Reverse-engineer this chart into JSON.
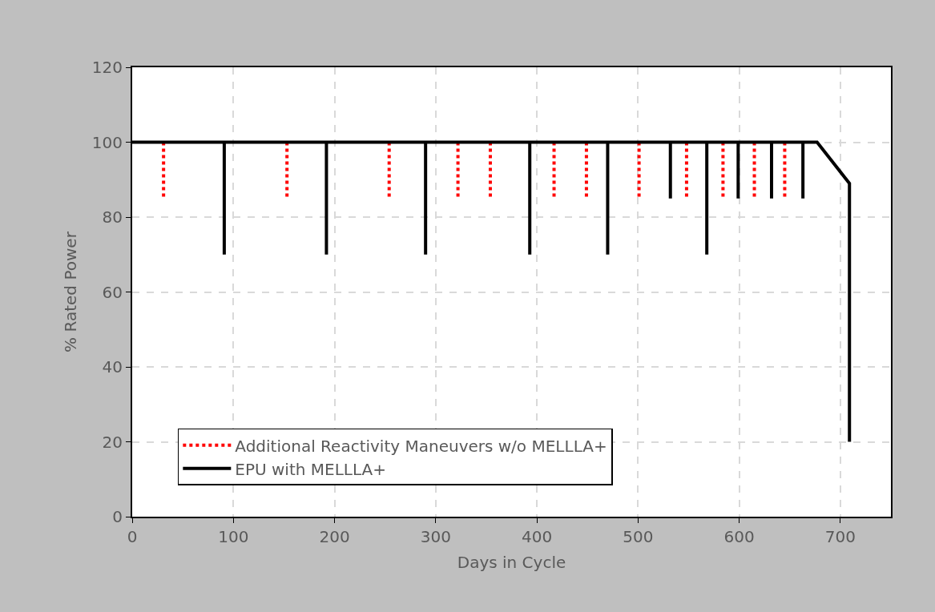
{
  "chart_data": {
    "type": "line",
    "xlabel": "Days in Cycle",
    "ylabel": "% Rated Power",
    "xlim": [
      0,
      750
    ],
    "xticks": [
      0,
      100,
      200,
      300,
      400,
      500,
      600,
      700
    ],
    "ylim": [
      0,
      120
    ],
    "yticks": [
      0,
      20,
      40,
      60,
      80,
      100,
      120
    ],
    "grid": true,
    "legend": "bottom",
    "marker": "none",
    "series": [
      {
        "name": "Additional Reactivity Maneuvers w/o MELLLA+",
        "color": "#ff0000",
        "line_style": "dotted",
        "x": [
          31,
          31,
          null,
          153,
          153,
          null,
          254,
          254,
          null,
          322,
          322,
          null,
          354,
          354,
          null,
          417,
          417,
          null,
          449,
          449,
          null,
          501,
          501,
          null,
          548,
          548,
          null,
          584,
          584,
          null,
          615,
          615,
          null,
          645,
          645
        ],
        "values": [
          100,
          85,
          null,
          100,
          85,
          null,
          100,
          85,
          null,
          100,
          85,
          null,
          100,
          85,
          null,
          100,
          85,
          null,
          100,
          85,
          null,
          100,
          85,
          null,
          100,
          85,
          null,
          100,
          85,
          null,
          100,
          85,
          null,
          100,
          85
        ]
      },
      {
        "name": "EPU with MELLLA+",
        "color": "#000000",
        "line_style": "solid",
        "x": [
          0,
          91,
          91,
          91,
          192,
          192,
          192,
          290,
          290,
          290,
          393,
          393,
          393,
          470,
          470,
          470,
          532,
          532,
          532,
          568,
          568,
          568,
          599,
          599,
          599,
          632,
          632,
          632,
          663,
          663,
          663,
          677,
          709,
          709
        ],
        "values": [
          100,
          100,
          70,
          100,
          100,
          70,
          100,
          100,
          70,
          100,
          100,
          70,
          100,
          100,
          70,
          100,
          100,
          85,
          100,
          100,
          70,
          100,
          100,
          85,
          100,
          100,
          85,
          100,
          100,
          85,
          100,
          100,
          89,
          20
        ]
      }
    ]
  }
}
